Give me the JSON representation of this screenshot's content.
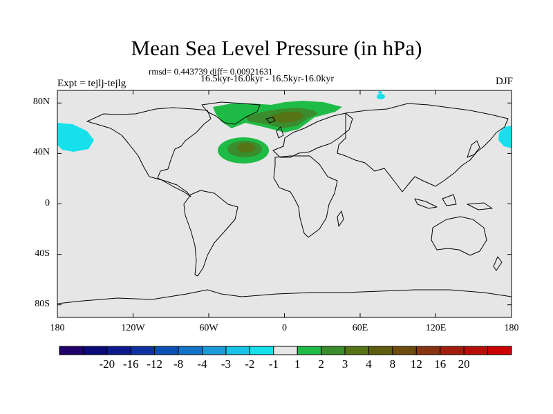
{
  "title": "Mean Sea Level Pressure (in hPa)",
  "stats": "rmsd= 0.443739 diff= 0.00921631",
  "period": "16.5kyr-16.0kyr - 16.5kyr-16.0kyr",
  "experiment": "Expt = tejlj-tejlg",
  "season": "DJF",
  "lat_ticks": [
    {
      "label": "80N",
      "lat": 80
    },
    {
      "label": "40N",
      "lat": 40
    },
    {
      "label": "0",
      "lat": 0
    },
    {
      "label": "40S",
      "lat": -40
    },
    {
      "label": "80S",
      "lat": -80
    }
  ],
  "lon_ticks": [
    {
      "label": "180",
      "lon": -180
    },
    {
      "label": "120W",
      "lon": -120
    },
    {
      "label": "60W",
      "lon": -60
    },
    {
      "label": "0",
      "lon": 0
    },
    {
      "label": "60E",
      "lon": 60
    },
    {
      "label": "120E",
      "lon": 120
    },
    {
      "label": "180",
      "lon": 180
    }
  ],
  "colorbar": {
    "colors": [
      "#20006a",
      "#0a0a78",
      "#0c1a8c",
      "#0e32a0",
      "#0c50b4",
      "#1273c8",
      "#1a9bd8",
      "#18c2e6",
      "#16e0ec",
      "#e6e6e6",
      "#1ebc46",
      "#3a8c2c",
      "#567416",
      "#5e5c0e",
      "#6e4c0e",
      "#883410",
      "#a21e0c",
      "#b80e0a",
      "#cc0000"
    ],
    "labels": [
      "-20",
      "-16",
      "-12",
      "-8",
      "-4",
      "-3",
      "-2",
      "-1",
      "1",
      "2",
      "3",
      "4",
      "8",
      "12",
      "16",
      "20"
    ]
  },
  "colors": {
    "background": "#e6e6e6",
    "positive_light": "#1ebc46",
    "positive_mid": "#3a8c2c",
    "positive_dark": "#567416",
    "negative_light": "#16e0ec"
  }
}
